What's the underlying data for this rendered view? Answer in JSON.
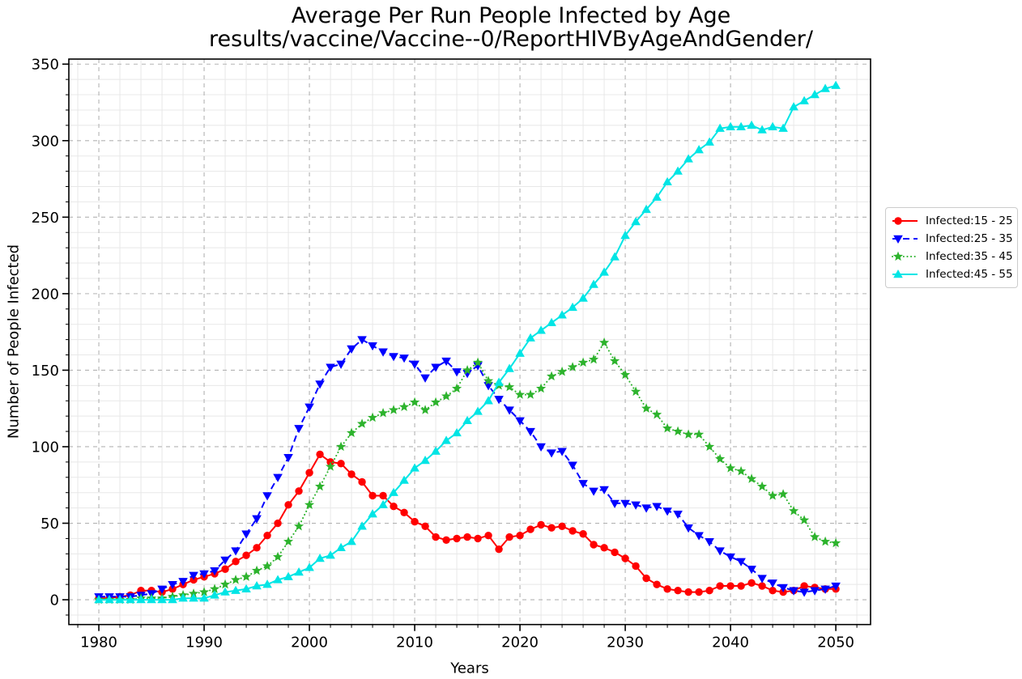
{
  "chart_data": {
    "type": "line",
    "title": "Average Per Run People Infected by Age",
    "subtitle": "results/vaccine/Vaccine--0/ReportHIVByAgeAndGender/",
    "xlabel": "Years",
    "ylabel": "Number of People Infected",
    "xlim": [
      1977.15,
      2053.3
    ],
    "ylim": [
      -16.2,
      353.3
    ],
    "x_ticks": [
      1980,
      1990,
      2000,
      2010,
      2020,
      2030,
      2040,
      2050
    ],
    "y_ticks": [
      0,
      50,
      100,
      150,
      200,
      250,
      300,
      350
    ],
    "x_minor_step": 2,
    "y_minor_step": 10,
    "grid": true,
    "grid_major_color": "#b3b3b3",
    "grid_minor_color": "#e8e8e8",
    "legend": {
      "position": "right-outside",
      "border_color": "#cccccc"
    },
    "x": [
      1980,
      1981,
      1982,
      1983,
      1984,
      1985,
      1986,
      1987,
      1988,
      1989,
      1990,
      1991,
      1992,
      1993,
      1994,
      1995,
      1996,
      1997,
      1998,
      1999,
      2000,
      2001,
      2002,
      2003,
      2004,
      2005,
      2006,
      2007,
      2008,
      2009,
      2010,
      2011,
      2012,
      2013,
      2014,
      2015,
      2016,
      2017,
      2018,
      2019,
      2020,
      2021,
      2022,
      2023,
      2024,
      2025,
      2026,
      2027,
      2028,
      2029,
      2030,
      2031,
      2032,
      2033,
      2034,
      2035,
      2036,
      2037,
      2038,
      2039,
      2040,
      2041,
      2042,
      2043,
      2044,
      2045,
      2046,
      2047,
      2048,
      2049,
      2050
    ],
    "series": [
      {
        "name": "Infected:15 - 25",
        "color": "#ff0000",
        "marker": "circle",
        "linestyle": "solid",
        "values": [
          1,
          1,
          2,
          3,
          6,
          6,
          5,
          7,
          10,
          13,
          15,
          17,
          20,
          25,
          29,
          34,
          42,
          50,
          62,
          71,
          83,
          95,
          90,
          89,
          82,
          77,
          68,
          68,
          61,
          57,
          51,
          48,
          41,
          39,
          40,
          41,
          40,
          42,
          33,
          41,
          42,
          46,
          49,
          47,
          48,
          45,
          43,
          36,
          34,
          31,
          27,
          22,
          14,
          10,
          7,
          6,
          5,
          5,
          6,
          9,
          9,
          9,
          11,
          9,
          6,
          5,
          6,
          9,
          8,
          7,
          7
        ]
      },
      {
        "name": "Infected:25 - 35",
        "color": "#0000ff",
        "marker": "triangle-down",
        "linestyle": "dashed",
        "values": [
          2,
          2,
          2,
          2,
          3,
          4,
          7,
          10,
          12,
          16,
          17,
          19,
          26,
          32,
          43,
          53,
          68,
          80,
          93,
          112,
          126,
          141,
          152,
          154,
          164,
          170,
          166,
          162,
          159,
          158,
          154,
          145,
          152,
          156,
          149,
          148,
          153,
          140,
          131,
          124,
          117,
          110,
          100,
          96,
          97,
          88,
          76,
          71,
          72,
          63,
          63,
          62,
          60,
          61,
          58,
          56,
          47,
          42,
          38,
          32,
          28,
          25,
          20,
          14,
          11,
          8,
          6,
          5,
          6,
          7,
          9
        ]
      },
      {
        "name": "Infected:35 - 45",
        "color": "#2db32d",
        "marker": "star",
        "linestyle": "dotted",
        "values": [
          0,
          0,
          0,
          0,
          1,
          1,
          1,
          2,
          3,
          4,
          5,
          7,
          10,
          13,
          15,
          19,
          22,
          28,
          38,
          48,
          62,
          74,
          87,
          100,
          109,
          115,
          119,
          122,
          124,
          126,
          129,
          124,
          129,
          133,
          138,
          150,
          155,
          143,
          140,
          139,
          134,
          134,
          138,
          146,
          149,
          152,
          155,
          157,
          168,
          156,
          147,
          136,
          125,
          121,
          112,
          110,
          108,
          108,
          100,
          92,
          86,
          84,
          79,
          74,
          68,
          69,
          58,
          52,
          41,
          38,
          37
        ]
      },
      {
        "name": "Infected:45 - 55",
        "color": "#00e5e5",
        "marker": "triangle-up",
        "linestyle": "solid",
        "values": [
          0,
          0,
          0,
          0,
          0,
          0,
          0,
          0,
          1,
          1,
          1,
          3,
          5,
          6,
          7,
          9,
          10,
          13,
          15,
          18,
          21,
          27,
          29,
          34,
          38,
          48,
          56,
          62,
          70,
          78,
          86,
          91,
          97,
          104,
          109,
          117,
          123,
          130,
          142,
          151,
          161,
          171,
          176,
          181,
          186,
          191,
          197,
          206,
          214,
          224,
          238,
          247,
          255,
          263,
          273,
          280,
          288,
          294,
          299,
          308,
          309,
          309,
          310,
          307,
          309,
          308,
          322,
          326,
          330,
          334,
          336
        ]
      }
    ]
  }
}
